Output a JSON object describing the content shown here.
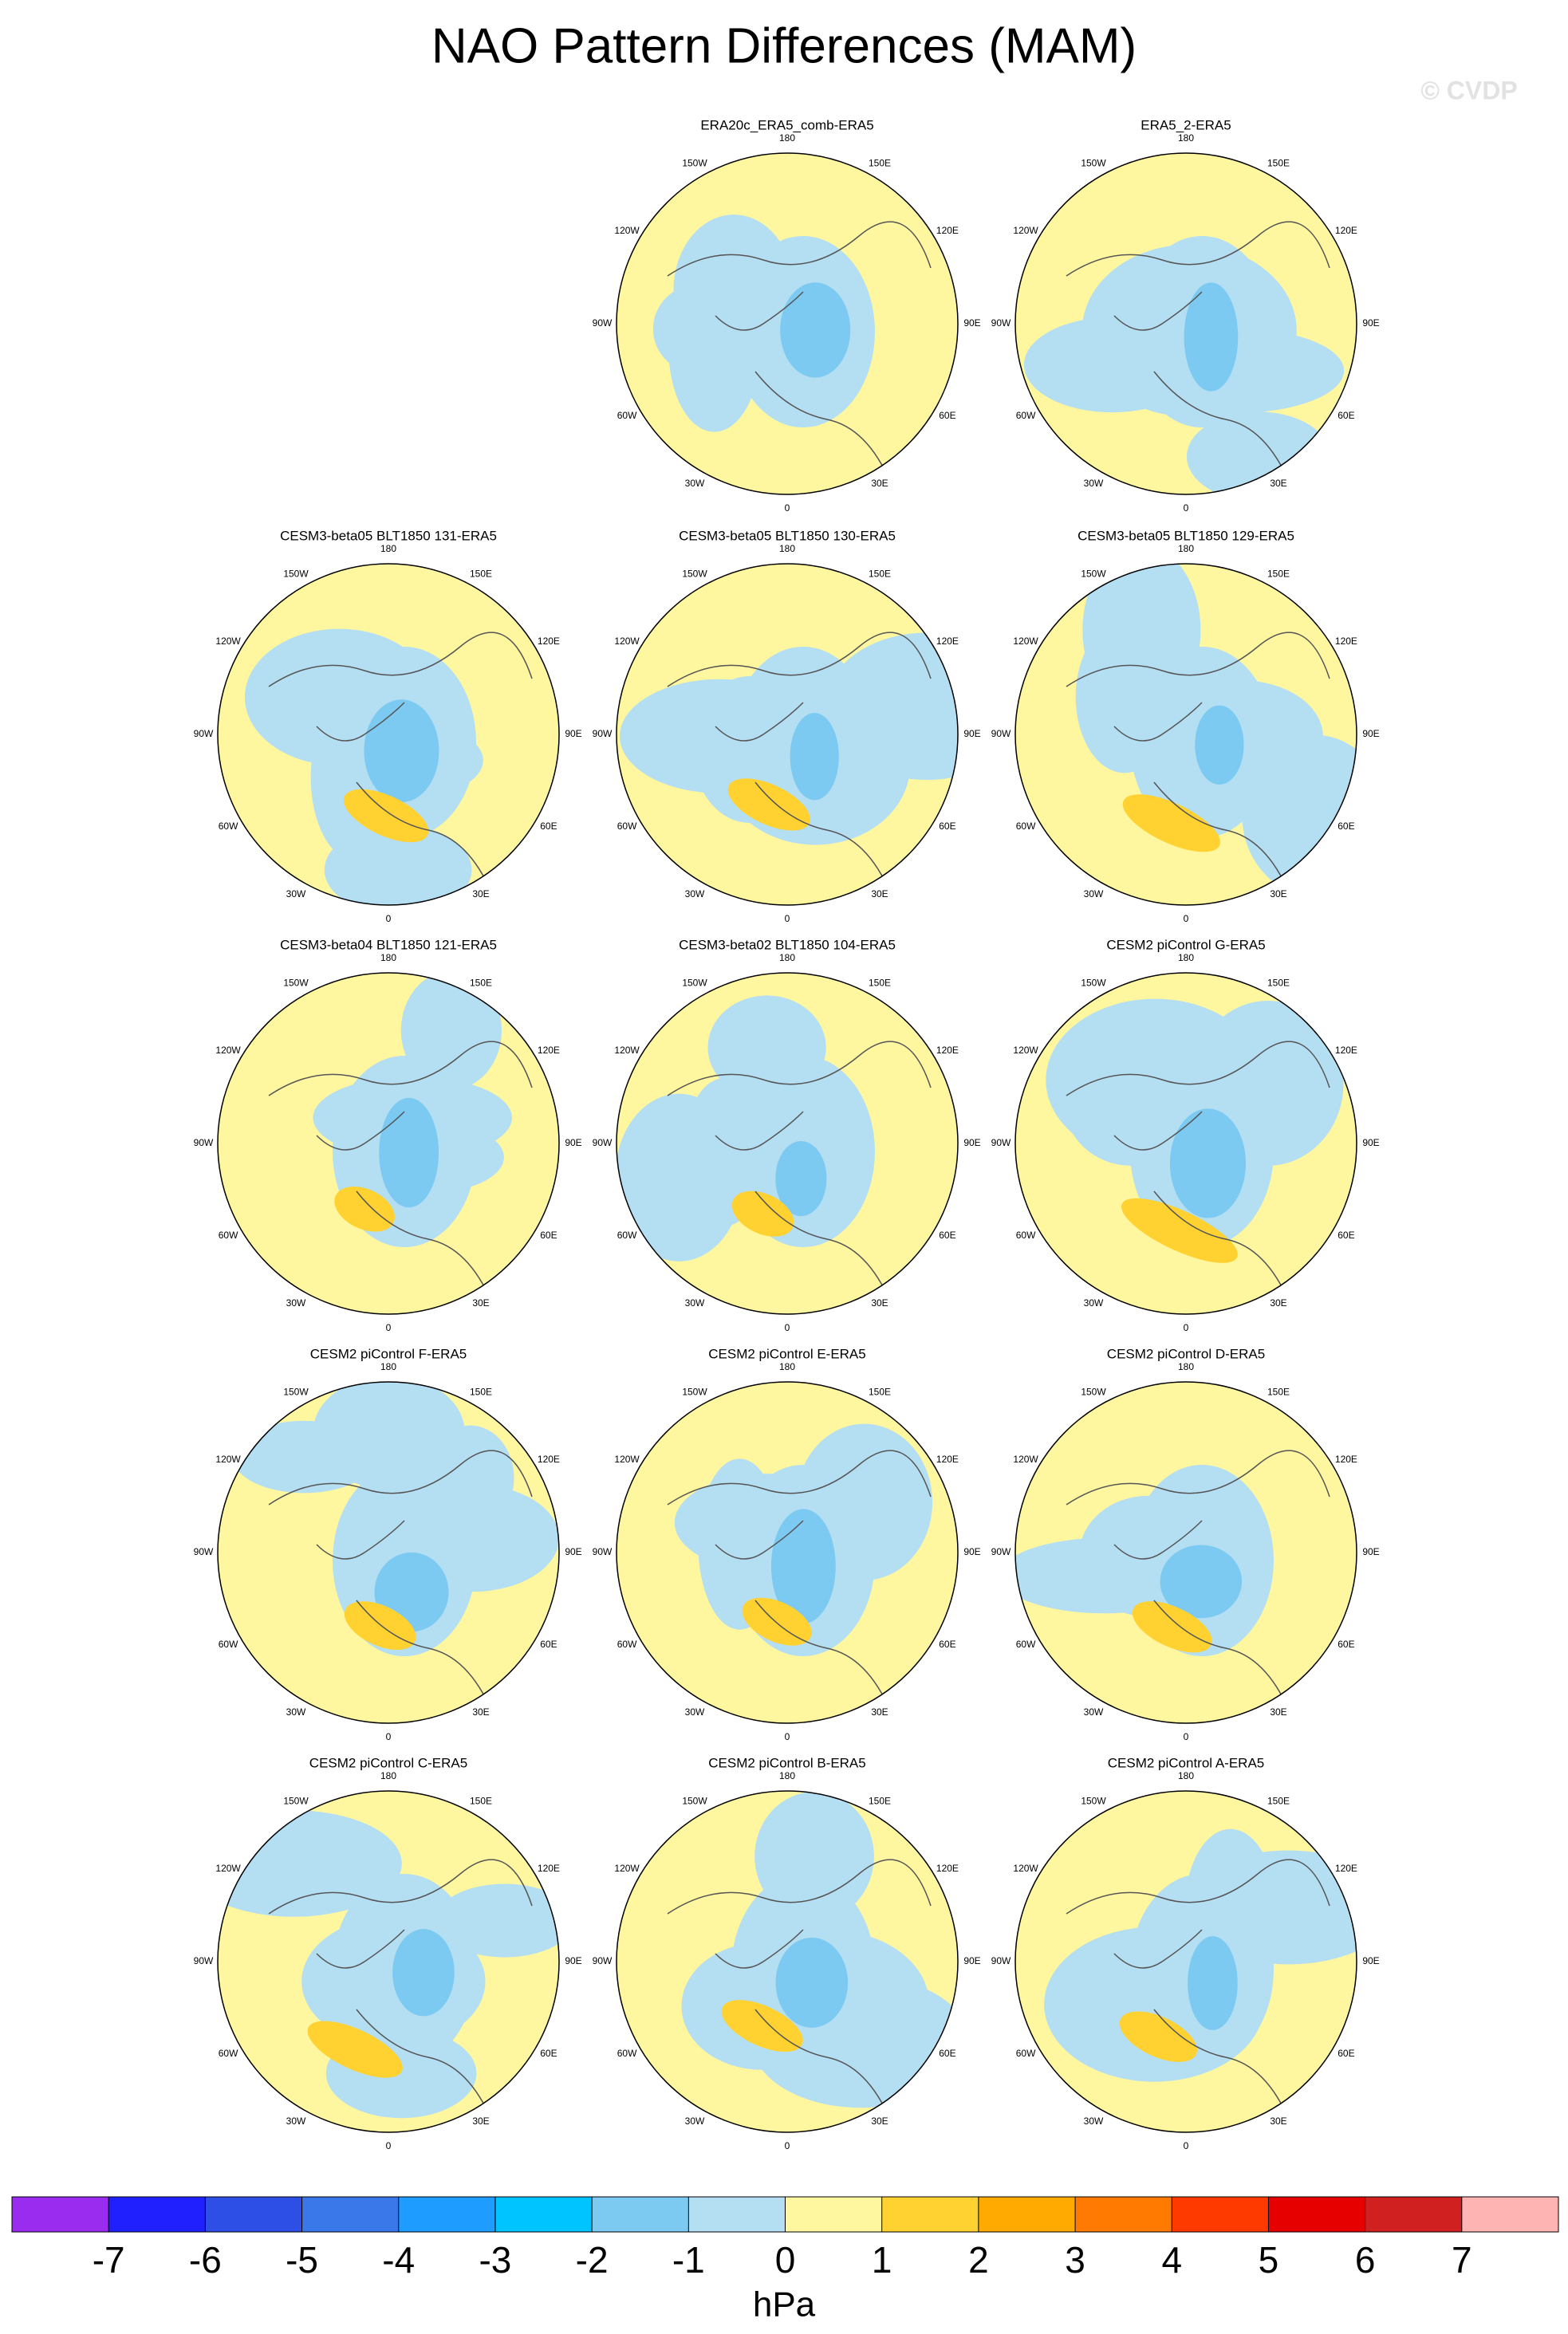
{
  "title": "NAO Pattern Differences (MAM)",
  "watermark": "© CVDP",
  "lon_labels": [
    "180",
    "150E",
    "120E",
    "90E",
    "60E",
    "30E",
    "0",
    "30W",
    "60W",
    "90W",
    "120W",
    "150W"
  ],
  "panels": [
    {
      "title": "ERA20c_ERA5_comb-ERA5"
    },
    {
      "title": "ERA5_2-ERA5"
    },
    {
      "title": "CESM3-beta05 BLT1850 131-ERA5"
    },
    {
      "title": "CESM3-beta05 BLT1850 130-ERA5"
    },
    {
      "title": "CESM3-beta05 BLT1850 129-ERA5"
    },
    {
      "title": "CESM3-beta04 BLT1850 121-ERA5"
    },
    {
      "title": "CESM3-beta02 BLT1850 104-ERA5"
    },
    {
      "title": "CESM2 piControl G-ERA5"
    },
    {
      "title": "CESM2 piControl F-ERA5"
    },
    {
      "title": "CESM2 piControl E-ERA5"
    },
    {
      "title": "CESM2 piControl D-ERA5"
    },
    {
      "title": "CESM2 piControl C-ERA5"
    },
    {
      "title": "CESM2 piControl B-ERA5"
    },
    {
      "title": "CESM2 piControl A-ERA5"
    }
  ],
  "colorbar": {
    "colors": [
      "#9a2cf0",
      "#2020ff",
      "#2e4fe6",
      "#3a78ea",
      "#1e9cff",
      "#00c4ff",
      "#7ccaf2",
      "#b4def2",
      "#fff6a0",
      "#ffd232",
      "#ffaa00",
      "#ff7a00",
      "#ff3a00",
      "#e60000",
      "#d02020",
      "#ffb4b4"
    ],
    "ticks": [
      -7,
      -6,
      -5,
      -4,
      -3,
      -2,
      -1,
      0,
      1,
      2,
      3,
      4,
      5,
      6,
      7
    ],
    "unit": "hPa"
  }
}
